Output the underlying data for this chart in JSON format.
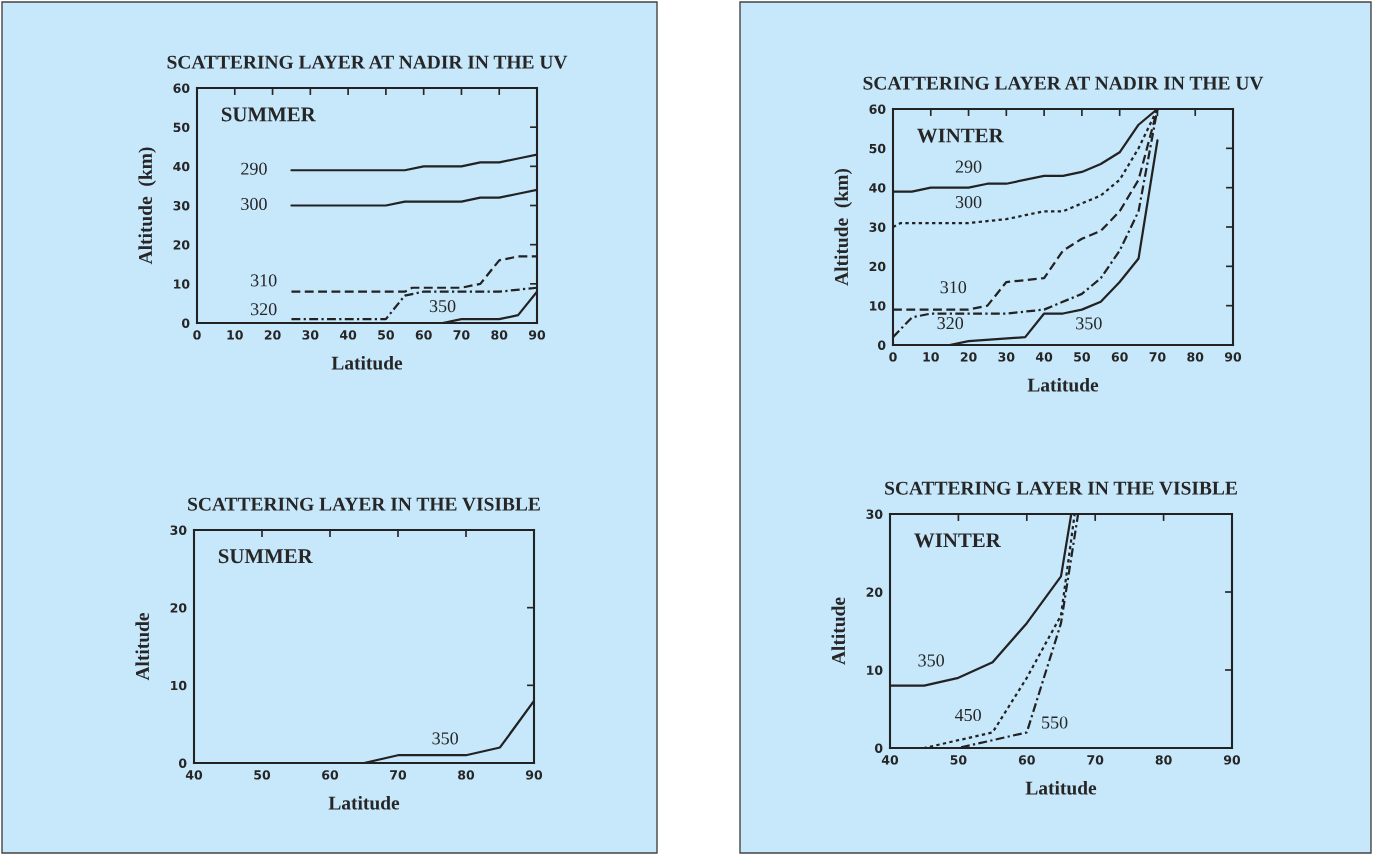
{
  "chart_data": [
    {
      "type": "line",
      "title": "SCATTERING LAYER AT NADIR IN THE UV",
      "xlabel": "Latitude",
      "ylabel": "Altitude  (km)",
      "xlim": [
        0,
        90
      ],
      "ylim": [
        0,
        60
      ],
      "xticks": [
        0,
        10,
        20,
        30,
        40,
        50,
        60,
        70,
        80,
        90
      ],
      "yticks": [
        0,
        10,
        20,
        30,
        40,
        50,
        60
      ],
      "grid": false,
      "series": [
        {
          "name": "290",
          "color": "#222222",
          "line_style": "solid",
          "x": [
            25,
            55,
            60,
            70,
            75,
            80,
            85,
            90
          ],
          "values": [
            39,
            39,
            40,
            40,
            41,
            41,
            42,
            43
          ]
        },
        {
          "name": "300",
          "color": "#222222",
          "line_style": "solid",
          "x": [
            25,
            50,
            55,
            70,
            75,
            80,
            85,
            90
          ],
          "values": [
            30,
            30,
            31,
            31,
            32,
            32,
            33,
            34
          ]
        },
        {
          "name": "310",
          "color": "#222222",
          "line_style": "dashed",
          "x": [
            25,
            55,
            57,
            70,
            75,
            80,
            85,
            90
          ],
          "values": [
            8,
            8,
            9,
            9,
            10,
            16,
            17,
            17
          ]
        },
        {
          "name": "320",
          "color": "#222222",
          "line_style": "dashdot",
          "x": [
            25,
            50,
            55,
            60,
            70,
            80,
            90
          ],
          "values": [
            1,
            1,
            7,
            8,
            8,
            8,
            9
          ]
        },
        {
          "name": "350",
          "color": "#222222",
          "line_style": "solid",
          "x": [
            25,
            65,
            70,
            80,
            85,
            90
          ],
          "values": [
            0,
            0,
            1,
            1,
            2,
            8
          ]
        }
      ],
      "annotations": [
        "SUMMER"
      ]
    },
    {
      "type": "line",
      "title": "SCATTERING LAYER AT NADIR IN THE UV",
      "xlabel": "Latitude",
      "ylabel": "Altitude  (km)",
      "xlim": [
        0,
        90
      ],
      "ylim": [
        0,
        60
      ],
      "xticks": [
        0,
        10,
        20,
        30,
        40,
        50,
        60,
        70,
        80,
        90
      ],
      "yticks": [
        0,
        10,
        20,
        30,
        40,
        50,
        60
      ],
      "grid": false,
      "series": [
        {
          "name": "290",
          "color": "#222222",
          "line_style": "solid",
          "x": [
            0,
            5,
            10,
            20,
            25,
            30,
            40,
            45,
            50,
            55,
            60,
            65,
            70
          ],
          "values": [
            39,
            39,
            40,
            40,
            41,
            41,
            43,
            43,
            44,
            46,
            49,
            56,
            60
          ]
        },
        {
          "name": "300",
          "color": "#222222",
          "line_style": "dotted",
          "x": [
            0,
            2,
            10,
            20,
            30,
            35,
            40,
            45,
            50,
            55,
            60,
            65,
            70
          ],
          "values": [
            30,
            31,
            31,
            31,
            32,
            33,
            34,
            34,
            36,
            38,
            42,
            50,
            60
          ]
        },
        {
          "name": "310",
          "color": "#222222",
          "line_style": "dashed",
          "x": [
            0,
            10,
            20,
            25,
            30,
            40,
            45,
            50,
            55,
            60,
            65,
            70
          ],
          "values": [
            9,
            9,
            9,
            10,
            16,
            17,
            24,
            27,
            29,
            34,
            42,
            60
          ]
        },
        {
          "name": "320",
          "color": "#222222",
          "line_style": "dashdot",
          "x": [
            0,
            5,
            10,
            20,
            30,
            40,
            50,
            55,
            60,
            65,
            70
          ],
          "values": [
            2,
            7,
            8,
            8,
            8,
            9,
            13,
            17,
            24,
            34,
            60
          ]
        },
        {
          "name": "350",
          "color": "#222222",
          "line_style": "solid",
          "x": [
            15,
            20,
            35,
            40,
            45,
            50,
            55,
            60,
            65,
            70
          ],
          "values": [
            0,
            1,
            2,
            8,
            8,
            9,
            11,
            16,
            22,
            52
          ]
        }
      ],
      "annotations": [
        "WINTER"
      ]
    },
    {
      "type": "line",
      "title": "SCATTERING LAYER IN THE VISIBLE",
      "xlabel": "Latitude",
      "ylabel": "Altitude",
      "xlim": [
        40,
        90
      ],
      "ylim": [
        0,
        30
      ],
      "xticks": [
        40,
        50,
        60,
        70,
        80,
        90
      ],
      "yticks": [
        0,
        10,
        20,
        30
      ],
      "grid": false,
      "series": [
        {
          "name": "350",
          "color": "#222222",
          "line_style": "solid",
          "x": [
            40,
            65,
            70,
            80,
            85,
            90
          ],
          "values": [
            0,
            0,
            1,
            1,
            2,
            8
          ]
        }
      ],
      "annotations": [
        "SUMMER"
      ]
    },
    {
      "type": "line",
      "title": "SCATTERING LAYER IN THE VISIBLE",
      "xlabel": "Latitude",
      "ylabel": "Altitude",
      "xlim": [
        40,
        90
      ],
      "ylim": [
        0,
        30
      ],
      "xticks": [
        40,
        50,
        60,
        70,
        80,
        90
      ],
      "yticks": [
        0,
        10,
        20,
        30
      ],
      "grid": false,
      "series": [
        {
          "name": "350",
          "color": "#222222",
          "line_style": "solid",
          "x": [
            40,
            45,
            50,
            55,
            60,
            65,
            66.5
          ],
          "values": [
            8,
            8,
            9,
            11,
            16,
            22,
            30
          ]
        },
        {
          "name": "450",
          "color": "#222222",
          "line_style": "dotted",
          "x": [
            40,
            45,
            50,
            55,
            60,
            65,
            67
          ],
          "values": [
            0,
            0,
            1,
            2,
            9,
            17,
            30
          ]
        },
        {
          "name": "550",
          "color": "#222222",
          "line_style": "dashdot",
          "x": [
            40,
            50,
            55,
            60,
            65,
            67.5
          ],
          "values": [
            0,
            0,
            1,
            2,
            16,
            30
          ]
        }
      ],
      "annotations": [
        "WINTER"
      ]
    }
  ]
}
